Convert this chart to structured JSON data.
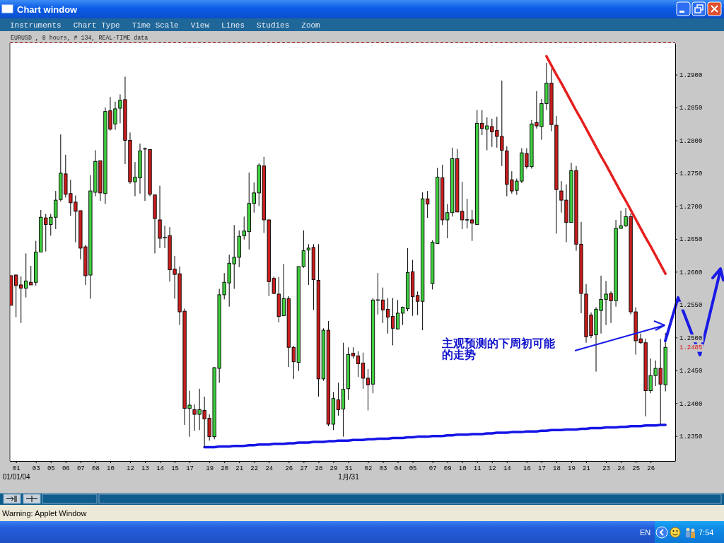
{
  "chart_data": {
    "type": "candlestick",
    "title": "EURUSD , 8 hours, # 134, REAL-TIME data",
    "categories": [
      null,
      "01\n01/01/04",
      null,
      null,
      null,
      "03",
      null,
      null,
      "05",
      null,
      null,
      "06",
      null,
      null,
      "07",
      null,
      null,
      "08",
      null,
      null,
      "10",
      null,
      null,
      null,
      "12",
      null,
      null,
      "13",
      null,
      null,
      "14",
      null,
      null,
      "15",
      null,
      null,
      "17",
      null,
      null,
      null,
      "19",
      null,
      null,
      "20",
      null,
      null,
      "21",
      null,
      null,
      "22",
      null,
      null,
      "24",
      null,
      null,
      null,
      "26",
      null,
      null,
      "27",
      null,
      null,
      "28",
      null,
      null,
      "29",
      null,
      null,
      "31\n1月/31",
      null,
      null,
      null,
      "02",
      null,
      null,
      "03",
      null,
      null,
      "04",
      null,
      null,
      "05",
      null,
      null,
      null,
      "07",
      null,
      null,
      "09",
      null,
      null,
      "10",
      null,
      null,
      "11",
      null,
      null,
      "12",
      null,
      null,
      "14",
      null,
      null,
      null,
      "16",
      null,
      null,
      "17",
      null,
      null,
      "18",
      null,
      null,
      "19",
      null,
      null,
      "21",
      null,
      null,
      null,
      "23",
      null,
      null,
      "24",
      null,
      null,
      "25",
      null,
      null,
      "26",
      null,
      null,
      null
    ],
    "ohlc": [
      [
        1.2594,
        1.2594,
        1.2549,
        1.2549
      ],
      [
        1.2595,
        1.2596,
        1.2531,
        1.2579
      ],
      [
        1.258,
        1.2593,
        1.2522,
        1.2575
      ],
      [
        1.2575,
        1.2628,
        1.2561,
        1.2586
      ],
      [
        1.2584,
        1.2609,
        1.258,
        1.258
      ],
      [
        1.2584,
        1.2647,
        1.2579,
        1.263
      ],
      [
        1.263,
        1.2694,
        1.263,
        1.2683
      ],
      [
        1.2682,
        1.2688,
        1.2631,
        1.2672
      ],
      [
        1.2672,
        1.2688,
        1.2655,
        1.2683
      ],
      [
        1.2683,
        1.2723,
        1.2665,
        1.2709
      ],
      [
        1.271,
        1.2809,
        1.2707,
        1.275
      ],
      [
        1.2749,
        1.2778,
        1.2713,
        1.2718
      ],
      [
        1.2719,
        1.274,
        1.2685,
        1.2705
      ],
      [
        1.2706,
        1.2716,
        1.2645,
        1.2692
      ],
      [
        1.2693,
        1.2693,
        1.2619,
        1.2636
      ],
      [
        1.2638,
        1.2641,
        1.258,
        1.2594
      ],
      [
        1.2595,
        1.2747,
        1.2559,
        1.2723
      ],
      [
        1.2721,
        1.2785,
        1.2715,
        1.2768
      ],
      [
        1.2769,
        1.2769,
        1.2708,
        1.272
      ],
      [
        1.2719,
        1.285,
        1.2703,
        1.2844
      ],
      [
        1.2845,
        1.2866,
        1.2815,
        1.2817
      ],
      [
        1.2825,
        1.2859,
        1.2816,
        1.2848
      ],
      [
        1.2849,
        1.287,
        1.2826,
        1.2861
      ],
      [
        1.2862,
        1.2897,
        1.2764,
        1.28
      ],
      [
        1.28,
        1.2812,
        1.2734,
        1.2737
      ],
      [
        1.2737,
        1.2767,
        1.2715,
        1.2744
      ],
      [
        1.2743,
        1.2795,
        1.2719,
        1.2784
      ],
      [
        1.2787,
        1.2789,
        1.2708,
        1.2787
      ],
      [
        1.2786,
        1.2786,
        1.2715,
        1.2718
      ],
      [
        1.2717,
        1.2717,
        1.2628,
        1.2681
      ],
      [
        1.2679,
        1.2731,
        1.2636,
        1.2651
      ],
      [
        1.2652,
        1.267,
        1.2636,
        1.2652
      ],
      [
        1.2655,
        1.2668,
        1.2585,
        1.2603
      ],
      [
        1.2604,
        1.2624,
        1.2559,
        1.2596
      ],
      [
        1.2597,
        1.2608,
        1.2519,
        1.2539
      ],
      [
        1.254,
        1.2544,
        1.2367,
        1.2392
      ],
      [
        1.2392,
        1.2419,
        1.2349,
        1.2397
      ],
      [
        1.239,
        1.2398,
        1.2358,
        1.2383
      ],
      [
        1.2383,
        1.2422,
        1.2359,
        1.239
      ],
      [
        1.2389,
        1.241,
        1.2333,
        1.2376
      ],
      [
        1.2377,
        1.2383,
        1.2343,
        1.2349
      ],
      [
        1.2349,
        1.2455,
        1.2345,
        1.2454
      ],
      [
        1.2453,
        1.2574,
        1.2431,
        1.2565
      ],
      [
        1.2565,
        1.2598,
        1.2558,
        1.2584
      ],
      [
        1.2583,
        1.2626,
        1.2547,
        1.2613
      ],
      [
        1.2612,
        1.2671,
        1.2574,
        1.2622
      ],
      [
        1.2622,
        1.2663,
        1.2607,
        1.2654
      ],
      [
        1.2655,
        1.2684,
        1.2649,
        1.2662
      ],
      [
        1.2661,
        1.2751,
        1.2634,
        1.2704
      ],
      [
        1.2704,
        1.2736,
        1.269,
        1.272
      ],
      [
        1.272,
        1.2765,
        1.27,
        1.2762
      ],
      [
        1.2761,
        1.2775,
        1.2659,
        1.2679
      ],
      [
        1.2679,
        1.2679,
        1.2563,
        1.2585
      ],
      [
        1.259,
        1.2593,
        1.2566,
        1.2567
      ],
      [
        1.2566,
        1.2592,
        1.2523,
        1.2532
      ],
      [
        1.2533,
        1.2612,
        1.2533,
        1.2559
      ],
      [
        1.2559,
        1.2563,
        1.2455,
        1.2485
      ],
      [
        1.2485,
        1.2487,
        1.2437,
        1.2463
      ],
      [
        1.2462,
        1.2608,
        1.2449,
        1.2608
      ],
      [
        1.2608,
        1.2663,
        1.2606,
        1.2632
      ],
      [
        1.2633,
        1.2642,
        1.258,
        1.2636
      ],
      [
        1.2637,
        1.2642,
        1.2542,
        1.2588
      ],
      [
        1.2587,
        1.2642,
        1.241,
        1.2437
      ],
      [
        1.2437,
        1.2514,
        1.2434,
        1.2511
      ],
      [
        1.2511,
        1.2525,
        1.2365,
        1.2368
      ],
      [
        1.2368,
        1.2417,
        1.2359,
        1.2407
      ],
      [
        1.2405,
        1.2431,
        1.2381,
        1.239
      ],
      [
        1.2391,
        1.2492,
        1.2349,
        1.2421
      ],
      [
        1.2422,
        1.2485,
        1.2405,
        1.2474
      ],
      [
        1.2476,
        1.2485,
        1.2468,
        1.2472
      ],
      [
        1.2472,
        1.2479,
        1.244,
        1.246
      ],
      [
        1.2461,
        1.2477,
        1.2422,
        1.2438
      ],
      [
        1.2438,
        1.2452,
        1.2389,
        1.2428
      ],
      [
        1.2429,
        1.256,
        1.2415,
        1.2557
      ],
      [
        1.2557,
        1.2598,
        1.2535,
        1.2557
      ],
      [
        1.2557,
        1.2576,
        1.2522,
        1.2542
      ],
      [
        1.2543,
        1.256,
        1.2506,
        1.2531
      ],
      [
        1.2532,
        1.256,
        1.2488,
        1.2514
      ],
      [
        1.2513,
        1.2557,
        1.2512,
        1.2537
      ],
      [
        1.2537,
        1.2547,
        1.2519,
        1.2546
      ],
      [
        1.2544,
        1.2636,
        1.254,
        1.2599
      ],
      [
        1.26,
        1.2618,
        1.2533,
        1.2562
      ],
      [
        1.2564,
        1.257,
        1.2534,
        1.2555
      ],
      [
        1.2555,
        1.2721,
        1.2511,
        1.2711
      ],
      [
        1.2711,
        1.2723,
        1.2682,
        1.2703
      ],
      [
        1.2582,
        1.2648,
        1.2573,
        1.2645
      ],
      [
        1.2643,
        1.2758,
        1.2643,
        1.2744
      ],
      [
        1.2743,
        1.2763,
        1.2671,
        1.2679
      ],
      [
        1.2679,
        1.2703,
        1.2651,
        1.269
      ],
      [
        1.269,
        1.2789,
        1.2684,
        1.2772
      ],
      [
        1.2772,
        1.2787,
        1.2691,
        1.2691
      ],
      [
        1.2692,
        1.2737,
        1.2665,
        1.2679
      ],
      [
        1.2679,
        1.2711,
        1.2666,
        1.2679
      ],
      [
        1.2679,
        1.2694,
        1.2647,
        1.2674
      ],
      [
        1.2672,
        1.2846,
        1.2672,
        1.2826
      ],
      [
        1.2826,
        1.2846,
        1.2808,
        1.2818
      ],
      [
        1.2817,
        1.2835,
        1.2785,
        1.2822
      ],
      [
        1.2821,
        1.2833,
        1.279,
        1.2813
      ],
      [
        1.2815,
        1.2836,
        1.2789,
        1.2806
      ],
      [
        1.2806,
        1.2891,
        1.2761,
        1.2785
      ],
      [
        1.2784,
        1.2791,
        1.2715,
        1.2733
      ],
      [
        1.274,
        1.2753,
        1.2719,
        1.2723
      ],
      [
        1.2724,
        1.2742,
        1.2717,
        1.2738
      ],
      [
        1.2738,
        1.2788,
        1.2735,
        1.2781
      ],
      [
        1.278,
        1.2788,
        1.2757,
        1.276
      ],
      [
        1.276,
        1.2831,
        1.2757,
        1.2825
      ],
      [
        1.2827,
        1.2875,
        1.2818,
        1.2822
      ],
      [
        1.2821,
        1.2863,
        1.2801,
        1.2856
      ],
      [
        1.2856,
        1.2918,
        1.2846,
        1.2887
      ],
      [
        1.2887,
        1.2909,
        1.2814,
        1.2824
      ],
      [
        1.2823,
        1.2837,
        1.2658,
        1.2725
      ],
      [
        1.2723,
        1.2738,
        1.269,
        1.2709
      ],
      [
        1.2709,
        1.2733,
        1.2645,
        1.2675
      ],
      [
        1.2675,
        1.2766,
        1.2675,
        1.2754
      ],
      [
        1.2754,
        1.2761,
        1.2632,
        1.2642
      ],
      [
        1.2642,
        1.2676,
        1.2537,
        1.2567
      ],
      [
        1.2566,
        1.2581,
        1.2492,
        1.2501
      ],
      [
        1.2534,
        1.2538,
        1.2499,
        1.2503
      ],
      [
        1.2504,
        1.2546,
        1.2448,
        1.2543
      ],
      [
        1.2541,
        1.2594,
        1.2506,
        1.2558
      ],
      [
        1.2558,
        1.2586,
        1.2519,
        1.2566
      ],
      [
        1.2567,
        1.257,
        1.2522,
        1.2556
      ],
      [
        1.2556,
        1.2679,
        1.2547,
        1.2666
      ],
      [
        1.2666,
        1.2693,
        1.2666,
        1.267
      ],
      [
        1.267,
        1.2697,
        1.2668,
        1.2684
      ],
      [
        1.2684,
        1.2689,
        1.2535,
        1.2539
      ],
      [
        1.2539,
        1.2546,
        1.2474,
        1.2495
      ],
      [
        1.2498,
        1.2506,
        1.249,
        1.2492
      ],
      [
        1.2492,
        1.2498,
        1.238,
        1.2419
      ],
      [
        1.2419,
        1.2468,
        1.2415,
        1.2442
      ],
      [
        1.2442,
        1.2465,
        1.2426,
        1.2453
      ],
      [
        1.2453,
        1.2498,
        1.2368,
        1.2429
      ],
      [
        1.2428,
        1.2507,
        1.2418,
        1.2485
      ]
    ],
    "colors": [
      "#c81e1e",
      "#c81e1e",
      "#c81e1e",
      "#3fcf3f",
      "#c81e1e",
      "#3fcf3f",
      "#3fcf3f",
      "#c81e1e",
      "#3fcf3f",
      "#3fcf3f",
      "#3fcf3f",
      "#c81e1e",
      "#c81e1e",
      "#c81e1e",
      "#c81e1e",
      "#c81e1e",
      "#3fcf3f",
      "#3fcf3f",
      "#c81e1e",
      "#3fcf3f",
      "#c81e1e",
      "#3fcf3f",
      "#3fcf3f",
      "#c81e1e",
      "#c81e1e",
      "#3fcf3f",
      "#3fcf3f",
      "#000000",
      "#c81e1e",
      "#c81e1e",
      "#c81e1e",
      "#000000",
      "#c81e1e",
      "#c81e1e",
      "#c81e1e",
      "#c81e1e",
      "#3fcf3f",
      "#c81e1e",
      "#3fcf3f",
      "#c81e1e",
      "#c81e1e",
      "#3fcf3f",
      "#3fcf3f",
      "#3fcf3f",
      "#3fcf3f",
      "#3fcf3f",
      "#3fcf3f",
      "#3fcf3f",
      "#3fcf3f",
      "#3fcf3f",
      "#3fcf3f",
      "#c81e1e",
      "#c81e1e",
      "#c81e1e",
      "#c81e1e",
      "#3fcf3f",
      "#c81e1e",
      "#c81e1e",
      "#3fcf3f",
      "#3fcf3f",
      "#3fcf3f",
      "#c81e1e",
      "#c81e1e",
      "#3fcf3f",
      "#c81e1e",
      "#3fcf3f",
      "#c81e1e",
      "#3fcf3f",
      "#3fcf3f",
      "#c81e1e",
      "#c81e1e",
      "#c81e1e",
      "#c81e1e",
      "#3fcf3f",
      "#000000",
      "#c81e1e",
      "#c81e1e",
      "#c81e1e",
      "#3fcf3f",
      "#3fcf3f",
      "#3fcf3f",
      "#c81e1e",
      "#c81e1e",
      "#3fcf3f",
      "#c81e1e",
      "#3fcf3f",
      "#3fcf3f",
      "#c81e1e",
      "#3fcf3f",
      "#3fcf3f",
      "#c81e1e",
      "#c81e1e",
      "#000000",
      "#c81e1e",
      "#3fcf3f",
      "#c81e1e",
      "#3fcf3f",
      "#c81e1e",
      "#c81e1e",
      "#c81e1e",
      "#c81e1e",
      "#c81e1e",
      "#3fcf3f",
      "#3fcf3f",
      "#c81e1e",
      "#3fcf3f",
      "#c81e1e",
      "#3fcf3f",
      "#3fcf3f",
      "#c81e1e",
      "#c81e1e",
      "#c81e1e",
      "#c81e1e",
      "#3fcf3f",
      "#c81e1e",
      "#c81e1e",
      "#c81e1e",
      "#c81e1e",
      "#3fcf3f",
      "#3fcf3f",
      "#3fcf3f",
      "#c81e1e",
      "#3fcf3f",
      "#3fcf3f",
      "#3fcf3f",
      "#c81e1e",
      "#c81e1e",
      "#c81e1e",
      "#c81e1e",
      "#3fcf3f",
      "#3fcf3f",
      "#c81e1e",
      "#3fcf3f"
    ],
    "series": [
      {
        "type": "line",
        "color": "#e61e1e",
        "values": [
          null,
          null,
          null,
          null,
          null,
          null,
          null,
          null,
          null,
          null,
          null,
          null,
          null,
          null,
          null,
          null,
          null,
          null,
          null,
          null,
          null,
          null,
          null,
          null,
          null,
          null,
          null,
          null,
          null,
          null,
          null,
          null,
          null,
          null,
          null,
          null,
          null,
          null,
          null,
          null,
          null,
          null,
          null,
          null,
          null,
          null,
          null,
          null,
          null,
          null,
          null,
          null,
          null,
          null,
          null,
          null,
          null,
          null,
          null,
          null,
          null,
          null,
          null,
          null,
          null,
          null,
          null,
          null,
          null,
          null,
          null,
          null,
          null,
          null,
          null,
          null,
          null,
          null,
          null,
          null,
          null,
          null,
          null,
          null,
          null,
          null,
          null,
          null,
          null,
          null,
          null,
          null,
          null,
          null,
          null,
          null,
          null,
          null,
          null,
          null,
          null,
          null,
          null,
          null,
          null,
          null,
          null,
          null,
          1.2928,
          1.2914,
          1.29,
          1.2887,
          1.2873,
          1.2859,
          1.2845,
          1.2832,
          1.2818,
          1.2804,
          1.279,
          1.2776,
          1.2763,
          1.2749,
          1.2735,
          1.2721,
          1.2708,
          1.2694,
          1.268,
          1.2666,
          1.2652,
          1.2639,
          1.2625,
          1.2611,
          1.2597
        ]
      },
      {
        "type": "line",
        "color": "#1414e6",
        "values": [
          null,
          null,
          null,
          null,
          null,
          null,
          null,
          null,
          null,
          null,
          null,
          null,
          null,
          null,
          null,
          null,
          null,
          null,
          null,
          null,
          null,
          null,
          null,
          null,
          null,
          null,
          null,
          null,
          null,
          null,
          null,
          null,
          null,
          null,
          null,
          null,
          null,
          null,
          null,
          1.2333,
          1.2333,
          1.2333,
          1.2334,
          1.2334,
          1.2334,
          1.2335,
          1.2335,
          1.2335,
          1.2336,
          1.2336,
          1.2337,
          1.2337,
          1.2337,
          1.2338,
          1.2338,
          1.2338,
          1.2339,
          1.2339,
          1.234,
          1.234,
          1.234,
          1.2341,
          1.2341,
          1.2341,
          1.2342,
          1.2342,
          1.2343,
          1.2343,
          1.2343,
          1.2344,
          1.2344,
          1.2344,
          1.2345,
          1.2345,
          1.2346,
          1.2346,
          1.2346,
          1.2347,
          1.2347,
          1.2347,
          1.2348,
          1.2348,
          1.2349,
          1.2349,
          1.2349,
          1.235,
          1.235,
          1.235,
          1.2351,
          1.2351,
          1.2352,
          1.2352,
          1.2352,
          1.2353,
          1.2353,
          1.2353,
          1.2354,
          1.2354,
          1.2355,
          1.2355,
          1.2355,
          1.2356,
          1.2356,
          1.2356,
          1.2357,
          1.2357,
          1.2357,
          1.2358,
          1.2358,
          1.2359,
          1.2359,
          1.2359,
          1.236,
          1.236,
          1.236,
          1.2361,
          1.2361,
          1.2362,
          1.2362,
          1.2362,
          1.2363,
          1.2363,
          1.2363,
          1.2364,
          1.2364,
          1.2365,
          1.2365,
          1.2365,
          1.2366,
          1.2366,
          1.2366,
          1.2367,
          1.2367
        ]
      }
    ],
    "ylim": [
      1.2312,
      1.2948
    ],
    "yticks": [
      {
        "value": 1.235,
        "label": "1.2350"
      },
      {
        "value": 1.24,
        "label": "1.2400"
      },
      {
        "value": 1.245,
        "label": "1.2450"
      },
      {
        "value": 1.25,
        "label": "1.2500"
      },
      {
        "value": 1.255,
        "label": "1.2550"
      },
      {
        "value": 1.26,
        "label": "1.2600"
      },
      {
        "value": 1.265,
        "label": "1.2650"
      },
      {
        "value": 1.27,
        "label": "1.2700"
      },
      {
        "value": 1.275,
        "label": "1.2750"
      },
      {
        "value": 1.28,
        "label": "1.2800"
      },
      {
        "value": 1.285,
        "label": "1.2850"
      },
      {
        "value": 1.29,
        "label": "1.2900"
      }
    ],
    "annotations": [
      "Chart window",
      "Instruments",
      "Chart Type",
      "Time Scale",
      "View",
      "Lines",
      "Studies",
      "Zoom",
      "Warning: Applet Window",
      "EN",
      "7:54",
      "主观预测的下周初可能的走势",
      "1.2485"
    ]
  }
}
